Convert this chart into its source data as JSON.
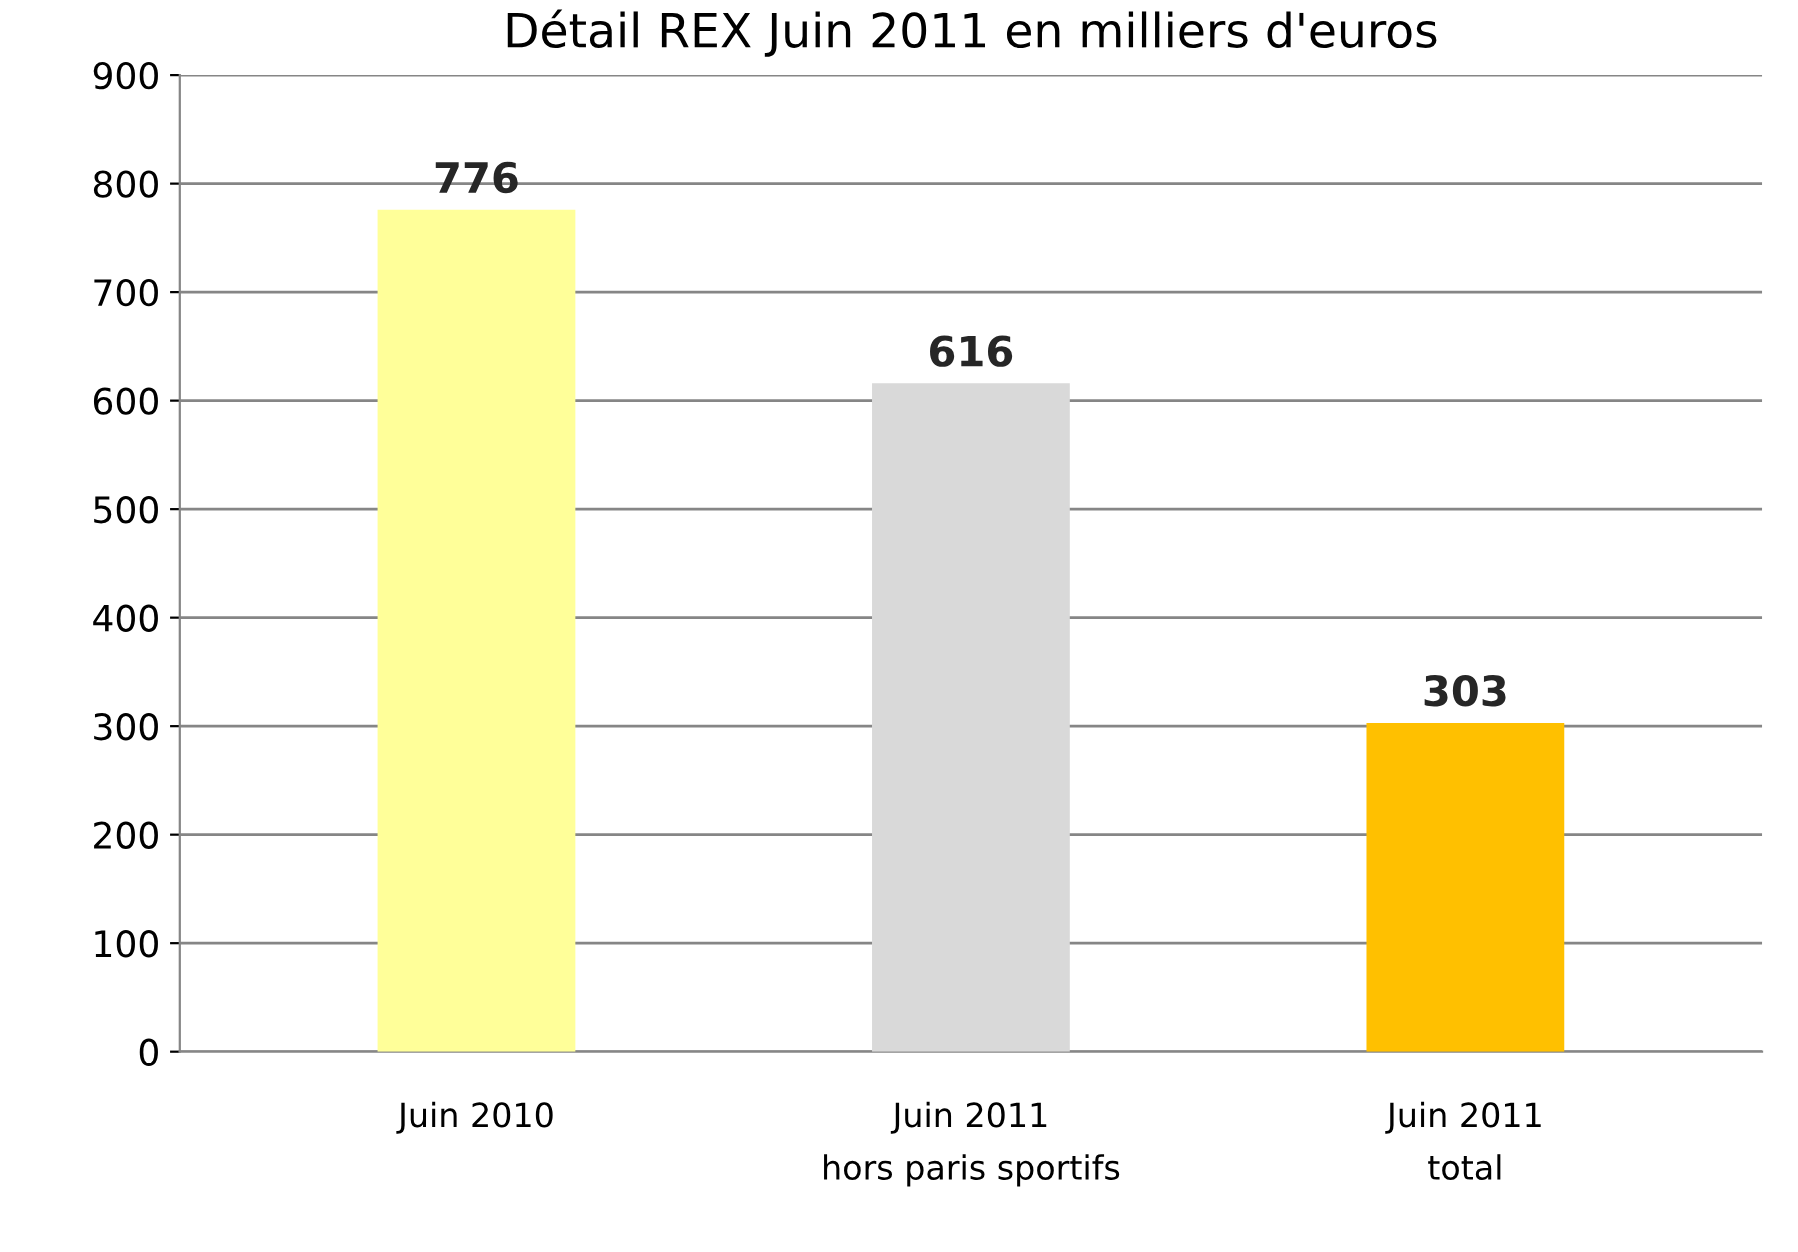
{
  "chart_data": {
    "type": "bar",
    "title": "Détail REX Juin 2011 en milliers d'euros",
    "categories": [
      "Juin 2010",
      "Juin 2011\nhors paris sportifs",
      "Juin 2011\ntotal"
    ],
    "values": [
      776,
      616,
      303
    ],
    "colors": [
      "#ffff99",
      "#d9d9d9",
      "#ffc000"
    ],
    "data_labels": true,
    "ylim": [
      0,
      900
    ],
    "yticks": [
      0,
      100,
      200,
      300,
      400,
      500,
      600,
      700,
      800,
      900
    ],
    "grid": "y",
    "legend": false
  }
}
